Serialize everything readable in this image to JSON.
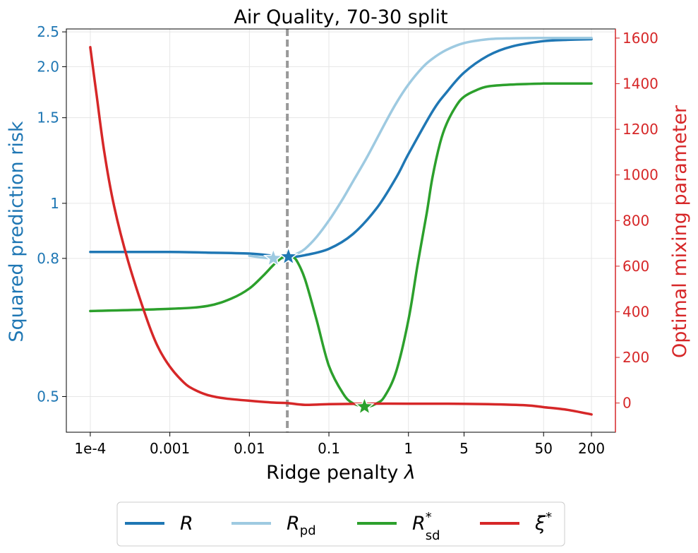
{
  "chart_data": {
    "type": "line",
    "title": "Air Quality, 70-30 split",
    "xlabel": "Ridge penalty λ",
    "ylabel_left": "Squared prediction risk",
    "ylabel_right": "Optimal mixing parameter",
    "x_scale": "log",
    "x_ticks": [
      "1e-4",
      "0.001",
      "0.01",
      "0.1",
      "1",
      "5",
      "50",
      "200"
    ],
    "x_tick_values": [
      0.0001,
      0.001,
      0.01,
      0.1,
      1,
      5,
      50,
      200
    ],
    "y_left_scale": "reciprocal-sqrt",
    "y_left_ticks": [
      "0.5",
      "0.8",
      "1",
      "1.5",
      "2.0",
      "2.5"
    ],
    "y_left_tick_values": [
      0.5,
      0.8,
      1.0,
      1.5,
      2.0,
      2.5
    ],
    "y_left_lim": [
      0.45,
      2.55
    ],
    "y_right_ticks": [
      "0",
      "200",
      "400",
      "600",
      "800",
      "1000",
      "1200",
      "1400",
      "1600"
    ],
    "y_right_tick_values": [
      0,
      200,
      400,
      600,
      800,
      1000,
      1200,
      1400,
      1600
    ],
    "y_right_lim": [
      -128,
      1640
    ],
    "xlim": [
      5e-05,
      400
    ],
    "vline_x": 0.03,
    "grid": true,
    "legend_position": "bottom-center",
    "colors": {
      "R": "#1f77b4",
      "R_pd": "#9ecae1",
      "R_sd": "#2ca02c",
      "xi": "#d62728",
      "left_axis": "#1f77b4",
      "right_axis": "#d62728",
      "vline": "#999999"
    },
    "series": [
      {
        "name": "R",
        "legend_main": "R",
        "legend_sub": "",
        "legend_sup": "",
        "axis": "left",
        "color": "#1f77b4",
        "x": [
          0.0001,
          0.001,
          0.003,
          0.01,
          0.02,
          0.03,
          0.05,
          0.1,
          0.2,
          0.4,
          0.7,
          1,
          2,
          3,
          5,
          10,
          20,
          50,
          100,
          200
        ],
        "y": [
          0.82,
          0.82,
          0.818,
          0.815,
          0.808,
          0.803,
          0.81,
          0.83,
          0.88,
          0.98,
          1.12,
          1.25,
          1.55,
          1.72,
          1.93,
          2.14,
          2.27,
          2.35,
          2.37,
          2.38
        ]
      },
      {
        "name": "R_pd",
        "legend_main": "R",
        "legend_sub": "pd",
        "legend_sup": "",
        "axis": "left",
        "color": "#9ecae1",
        "x": [
          0.01,
          0.015,
          0.02,
          0.025,
          0.03,
          0.04,
          0.05,
          0.07,
          0.1,
          0.15,
          0.2,
          0.3,
          0.5,
          0.7,
          1,
          1.5,
          2,
          3,
          5,
          10,
          20,
          50,
          100,
          200
        ],
        "y": [
          0.808,
          0.802,
          0.8,
          0.8,
          0.803,
          0.815,
          0.83,
          0.87,
          0.93,
          1.02,
          1.1,
          1.23,
          1.45,
          1.62,
          1.8,
          1.99,
          2.1,
          2.22,
          2.32,
          2.38,
          2.395,
          2.4,
          2.4,
          2.4
        ]
      },
      {
        "name": "R_sd",
        "legend_main": "R",
        "legend_sub": "sd",
        "legend_sup": "*",
        "axis": "left",
        "color": "#2ca02c",
        "x": [
          0.0001,
          0.001,
          0.003,
          0.006,
          0.01,
          0.015,
          0.02,
          0.025,
          0.03,
          0.035,
          0.04,
          0.05,
          0.07,
          0.1,
          0.15,
          0.2,
          0.3,
          0.4,
          0.5,
          0.7,
          1,
          1.3,
          1.7,
          2,
          2.5,
          3,
          4,
          5,
          7,
          10,
          20,
          50,
          100,
          200
        ],
        "y": [
          0.66,
          0.665,
          0.672,
          0.69,
          0.715,
          0.75,
          0.78,
          0.8,
          0.81,
          0.805,
          0.79,
          0.74,
          0.64,
          0.55,
          0.505,
          0.49,
          0.485,
          0.49,
          0.5,
          0.54,
          0.64,
          0.78,
          0.96,
          1.12,
          1.32,
          1.45,
          1.6,
          1.68,
          1.74,
          1.78,
          1.8,
          1.81,
          1.81,
          1.81
        ]
      },
      {
        "name": "xi",
        "legend_main": "ξ",
        "legend_sub": "",
        "legend_sup": "*",
        "axis": "right",
        "color": "#d62728",
        "x": [
          0.0001,
          0.00012,
          0.00015,
          0.0002,
          0.0003,
          0.0005,
          0.0007,
          0.001,
          0.0015,
          0.002,
          0.003,
          0.005,
          0.01,
          0.02,
          0.03,
          0.05,
          0.1,
          0.3,
          1,
          3,
          10,
          30,
          50,
          100,
          200
        ],
        "y": [
          1560,
          1350,
          1100,
          860,
          620,
          380,
          250,
          160,
          90,
          60,
          35,
          20,
          10,
          2,
          0,
          -8,
          -5,
          -3,
          -3,
          -3,
          -5,
          -10,
          -18,
          -30,
          -50
        ]
      }
    ],
    "markers": [
      {
        "series": "R_pd",
        "x": 0.02,
        "y": 0.8,
        "color": "#9ecae1"
      },
      {
        "series": "R",
        "x": 0.031,
        "y": 0.805,
        "color": "#1f77b4"
      },
      {
        "series": "R_sd",
        "x": 0.28,
        "y": 0.485,
        "color": "#2ca02c"
      }
    ]
  }
}
